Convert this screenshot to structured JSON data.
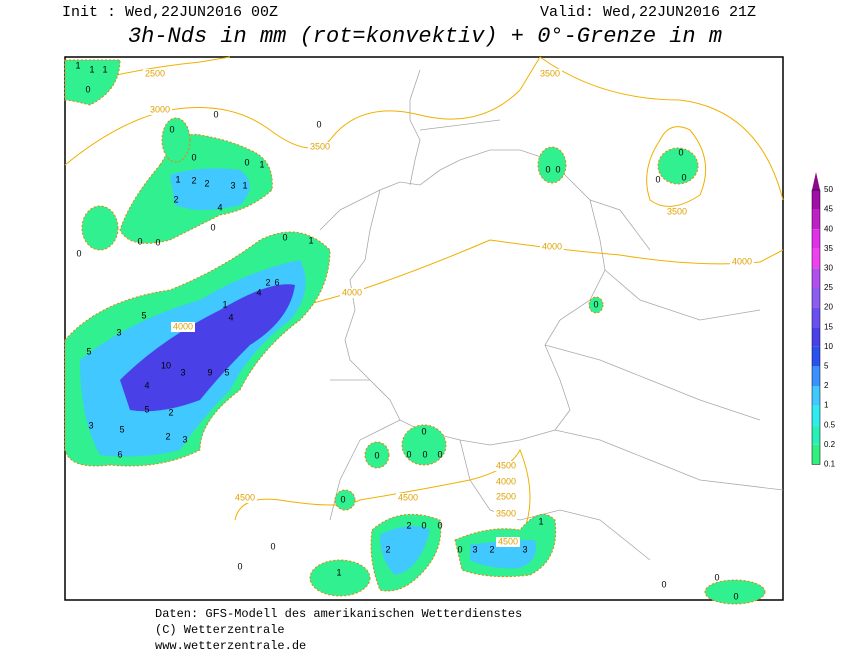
{
  "header": {
    "init": "Init : Wed,22JUN2016 00Z",
    "valid": "Valid: Wed,22JUN2016 21Z",
    "title": "3h-Nds in mm (rot=konvektiv) + 0°-Grenze in m"
  },
  "legend": {
    "labels": [
      "50",
      "45",
      "40",
      "35",
      "30",
      "25",
      "20",
      "15",
      "10",
      "5",
      "2",
      "1",
      "0.5",
      "0.2",
      "0.1"
    ],
    "colors": [
      "#8a0a8a",
      "#a010a8",
      "#c020c8",
      "#e030e8",
      "#f040f0",
      "#b050f0",
      "#8c5cf0",
      "#6a50f0",
      "#4a40e8",
      "#2a50f0",
      "#3a90ff",
      "#40c8ff",
      "#30ecf0",
      "#28f0b8",
      "#30f080"
    ]
  },
  "map": {
    "contour_labels": [
      "2500",
      "3000",
      "3500",
      "3500",
      "3500",
      "4000",
      "4000",
      "4000",
      "4000",
      "4500",
      "4500",
      "4500",
      "4000",
      "2500",
      "3500",
      "4500"
    ],
    "precip_labels": [
      "1",
      "1",
      "1",
      "0",
      "0",
      "0",
      "1",
      "2",
      "2",
      "0",
      "1",
      "1",
      "3",
      "2",
      "4",
      "0",
      "0",
      "0",
      "1",
      "0",
      "2",
      "6",
      "4",
      "1",
      "4",
      "5",
      "3",
      "5",
      "10",
      "3",
      "9",
      "5",
      "4",
      "5",
      "2",
      "3",
      "5",
      "2",
      "3",
      "6",
      "0",
      "0",
      "0",
      "0",
      "0",
      "0",
      "2",
      "0",
      "2",
      "0",
      "0",
      "3",
      "2",
      "3",
      "1",
      "0",
      "0",
      "0",
      "0",
      "0",
      "0",
      "0",
      "1",
      "0",
      "0",
      "0",
      "0",
      "0",
      "0",
      "0"
    ]
  },
  "footer": {
    "lines": [
      "Daten: GFS-Modell des amerikanischen Wetterdienstes",
      "(C) Wetterzentrale",
      "www.wetterzentrale.de"
    ]
  }
}
